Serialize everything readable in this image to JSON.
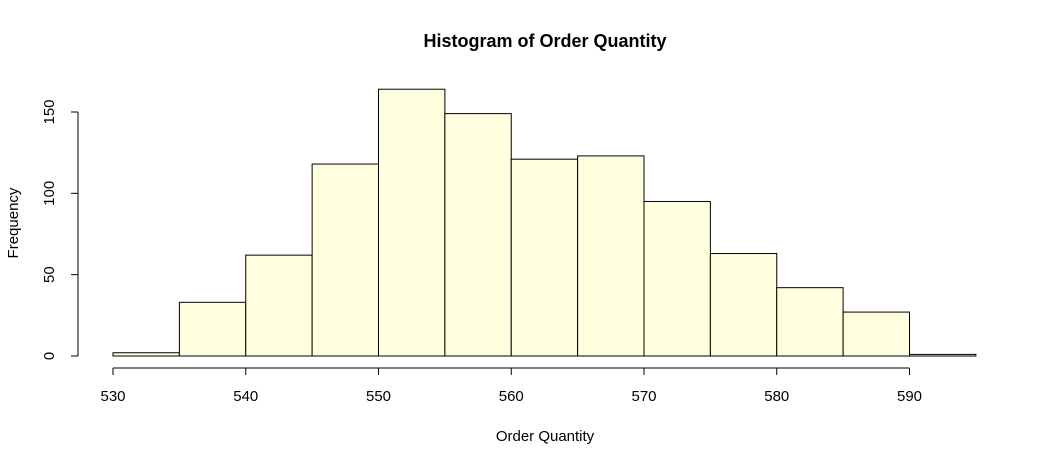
{
  "chart_data": {
    "type": "bar",
    "title": "Histogram of Order Quantity",
    "xlabel": "Order Quantity",
    "ylabel": "Frequency",
    "bin_width": 5,
    "bins": [
      {
        "start": 530,
        "end": 535,
        "count": 2
      },
      {
        "start": 535,
        "end": 540,
        "count": 33
      },
      {
        "start": 540,
        "end": 545,
        "count": 62
      },
      {
        "start": 545,
        "end": 550,
        "count": 118
      },
      {
        "start": 550,
        "end": 555,
        "count": 164
      },
      {
        "start": 555,
        "end": 560,
        "count": 149
      },
      {
        "start": 560,
        "end": 565,
        "count": 121
      },
      {
        "start": 565,
        "end": 570,
        "count": 123
      },
      {
        "start": 570,
        "end": 575,
        "count": 95
      },
      {
        "start": 575,
        "end": 580,
        "count": 63
      },
      {
        "start": 580,
        "end": 585,
        "count": 42
      },
      {
        "start": 585,
        "end": 590,
        "count": 27
      },
      {
        "start": 590,
        "end": 595,
        "count": 1
      }
    ],
    "x_ticks": [
      530,
      540,
      550,
      560,
      570,
      580,
      590
    ],
    "y_ticks": [
      0,
      50,
      100,
      150
    ],
    "xlim": [
      530,
      595
    ],
    "ylim": [
      0,
      164
    ],
    "bar_color": "#FFFFE0",
    "grid": false,
    "legend": "none"
  }
}
